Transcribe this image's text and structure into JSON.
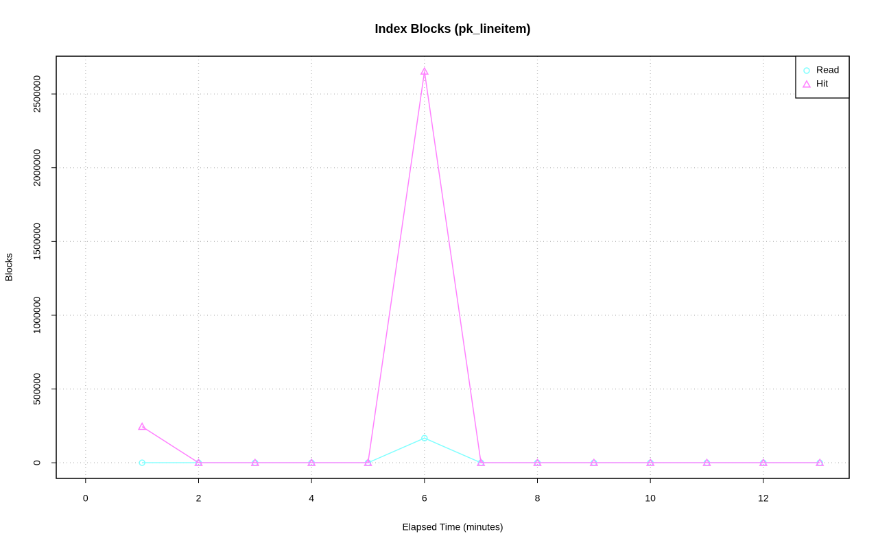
{
  "chart_data": {
    "type": "line",
    "title": "Index Blocks (pk_lineitem)",
    "xlabel": "Elapsed Time (minutes)",
    "ylabel": "Blocks",
    "x": [
      1,
      2,
      3,
      4,
      5,
      6,
      7,
      8,
      9,
      10,
      11,
      12,
      13
    ],
    "series": [
      {
        "name": "Read",
        "color": "#80ffff",
        "marker": "circle",
        "values": [
          0,
          0,
          0,
          0,
          0,
          167000,
          0,
          0,
          0,
          0,
          0,
          0,
          0
        ]
      },
      {
        "name": "Hit",
        "color": "#ff80ff",
        "marker": "triangle",
        "values": [
          245000,
          0,
          0,
          0,
          0,
          2653000,
          0,
          0,
          0,
          0,
          0,
          0,
          0
        ]
      }
    ],
    "xlim": [
      -0.52,
      13.52
    ],
    "xticks": [
      0,
      2,
      4,
      6,
      8,
      10,
      12
    ],
    "ylim": [
      -106000,
      2756000
    ],
    "yticks": [
      0,
      500000,
      1000000,
      1500000,
      2000000,
      2500000
    ],
    "grid": true,
    "legend": "top-right"
  }
}
